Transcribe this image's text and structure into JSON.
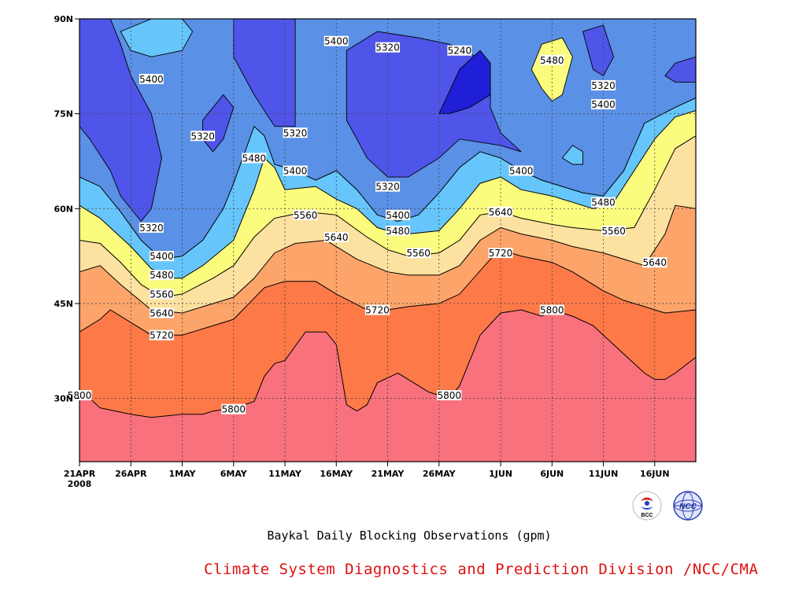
{
  "chart_data": {
    "type": "contour",
    "title": "Baykal Daily Blocking Observations (gpm)",
    "source": "Climate System Diagnostics and Prediction Division /NCC/CMA",
    "x_tick_labels": [
      "21APR",
      "26APR",
      "1MAY",
      "6MAY",
      "11MAY",
      "16MAY",
      "21MAY",
      "26MAY",
      "1JUN",
      "6JUN",
      "11JUN",
      "16JUN"
    ],
    "x_year_label": "2008",
    "y_tick_labels": [
      "30N",
      "45N",
      "60N",
      "75N",
      "90N"
    ],
    "x_range": [
      "21APR",
      "20JUN"
    ],
    "y_range": [
      20,
      90
    ],
    "grid": true,
    "levels": [
      5240,
      5320,
      5400,
      5480,
      5560,
      5640,
      5720,
      5800
    ],
    "colors": {
      "below_5240": "#1f1fd8",
      "5240_5320": "#4f55e8",
      "5320_5400": "#5a90e6",
      "5400_5480": "#66c6fb",
      "5480_5560": "#fbfb7d",
      "5560_5640": "#fde1a0",
      "5640_5720": "#fda46a",
      "5720_5800": "#fd7a48",
      "above_5800": "#f8717d"
    },
    "contour_lines": [
      {
        "level": 5800,
        "points": [
          [
            "21APR",
            30.5
          ],
          [
            "22APR",
            30
          ],
          [
            "23APR",
            28.5
          ],
          [
            "26APR",
            27.5
          ],
          [
            "28APR",
            27
          ],
          [
            "1MAY",
            27.5
          ],
          [
            "3MAY",
            27.5
          ],
          [
            "4MAY",
            28
          ],
          [
            "6MAY",
            28.5
          ],
          [
            "8MAY",
            29.5
          ],
          [
            "9MAY",
            33.5
          ],
          [
            "10MAY",
            35.5
          ],
          [
            "11MAY",
            36
          ],
          [
            "13MAY",
            40.5
          ],
          [
            "15MAY",
            40.5
          ],
          [
            "16MAY",
            38.5
          ],
          [
            "17MAY",
            29
          ],
          [
            "18MAY",
            28
          ],
          [
            "19MAY",
            29
          ],
          [
            "20MAY",
            32.5
          ],
          [
            "22MAY",
            34
          ],
          [
            "23MAY",
            33
          ],
          [
            "25MAY",
            31
          ],
          [
            "27MAY",
            30
          ],
          [
            "28MAY",
            32
          ],
          [
            "30MAY",
            40
          ],
          [
            "1JUN",
            43.5
          ],
          [
            "3JUN",
            44
          ],
          [
            "4JUN",
            43.5
          ],
          [
            "5JUN",
            43
          ],
          [
            "6JUN",
            44
          ],
          [
            "8JUN",
            43
          ],
          [
            "10JUN",
            41.5
          ],
          [
            "12JUN",
            38.5
          ],
          [
            "15JUN",
            34
          ],
          [
            "16JUN",
            33
          ],
          [
            "17JUN",
            33
          ],
          [
            "18JUN",
            34
          ],
          [
            "20JUN",
            36.5
          ]
        ]
      },
      {
        "level": 5720,
        "points": [
          [
            "21APR",
            40.5
          ],
          [
            "23APR",
            42.5
          ],
          [
            "24APR",
            44
          ],
          [
            "26APR",
            42
          ],
          [
            "28APR",
            40
          ],
          [
            "1MAY",
            40
          ],
          [
            "3MAY",
            41
          ],
          [
            "6MAY",
            42.5
          ],
          [
            "9MAY",
            47.5
          ],
          [
            "11MAY",
            48.5
          ],
          [
            "14MAY",
            48.5
          ],
          [
            "16MAY",
            46.5
          ],
          [
            "19MAY",
            44
          ],
          [
            "21MAY",
            44
          ],
          [
            "23MAY",
            44.5
          ],
          [
            "26MAY",
            45
          ],
          [
            "28MAY",
            46.5
          ],
          [
            "31MAY",
            52
          ],
          [
            "1JUN",
            53.5
          ],
          [
            "3JUN",
            52.5
          ],
          [
            "6JUN",
            51.5
          ],
          [
            "8JUN",
            50
          ],
          [
            "11JUN",
            47
          ],
          [
            "13JUN",
            45.5
          ],
          [
            "15JUN",
            44.5
          ],
          [
            "17JUN",
            43.5
          ],
          [
            "20JUN",
            44
          ]
        ]
      },
      {
        "level": 5640,
        "points": [
          [
            "21APR",
            50
          ],
          [
            "23APR",
            51
          ],
          [
            "25APR",
            48
          ],
          [
            "28APR",
            44
          ],
          [
            "1MAY",
            43.5
          ],
          [
            "6MAY",
            46
          ],
          [
            "8MAY",
            49
          ],
          [
            "10MAY",
            53
          ],
          [
            "12MAY",
            54.5
          ],
          [
            "15MAY",
            55
          ],
          [
            "18MAY",
            52
          ],
          [
            "21MAY",
            50
          ],
          [
            "23MAY",
            49.5
          ],
          [
            "26MAY",
            49.5
          ],
          [
            "28MAY",
            51
          ],
          [
            "30MAY",
            55
          ],
          [
            "1JUN",
            57
          ],
          [
            "3JUN",
            56
          ],
          [
            "6JUN",
            55
          ],
          [
            "8JUN",
            54
          ],
          [
            "11JUN",
            53
          ],
          [
            "13JUN",
            52
          ],
          [
            "15JUN",
            51
          ],
          [
            "17JUN",
            56
          ],
          [
            "18JUN",
            60.5
          ],
          [
            "20JUN",
            60
          ]
        ]
      },
      {
        "level": 5560,
        "points": [
          [
            "21APR",
            55
          ],
          [
            "23APR",
            54.5
          ],
          [
            "25APR",
            51.5
          ],
          [
            "27APR",
            48
          ],
          [
            "29APR",
            46
          ],
          [
            "1MAY",
            46.5
          ],
          [
            "4MAY",
            49
          ],
          [
            "6MAY",
            51
          ],
          [
            "8MAY",
            55.5
          ],
          [
            "10MAY",
            58.5
          ],
          [
            "13MAY",
            59.5
          ],
          [
            "16MAY",
            59
          ],
          [
            "19MAY",
            55.5
          ],
          [
            "21MAY",
            53.5
          ],
          [
            "23MAY",
            52.5
          ],
          [
            "26MAY",
            53
          ],
          [
            "28MAY",
            55
          ],
          [
            "30MAY",
            59
          ],
          [
            "1JUN",
            59.5
          ],
          [
            "3JUN",
            58.5
          ],
          [
            "6JUN",
            57.5
          ],
          [
            "8JUN",
            57
          ],
          [
            "11JUN",
            56.5
          ],
          [
            "14JUN",
            57
          ],
          [
            "16JUN",
            63
          ],
          [
            "18JUN",
            69.5
          ],
          [
            "20JUN",
            71.5
          ]
        ]
      },
      {
        "level": 5480,
        "points": [
          [
            "21APR",
            60.5
          ],
          [
            "23APR",
            58.5
          ],
          [
            "26APR",
            54
          ],
          [
            "28APR",
            50.5
          ],
          [
            "30APR",
            49
          ],
          [
            "1MAY",
            49
          ],
          [
            "3MAY",
            51
          ],
          [
            "6MAY",
            55
          ],
          [
            "8MAY",
            63
          ],
          [
            "9MAY",
            68
          ],
          [
            "10MAY",
            66.5
          ],
          [
            "11MAY",
            63
          ],
          [
            "14MAY",
            63.5
          ],
          [
            "16MAY",
            61.5
          ],
          [
            "18MAY",
            60
          ],
          [
            "20MAY",
            57
          ],
          [
            "21MAY",
            56.5
          ],
          [
            "23MAY",
            56
          ],
          [
            "26MAY",
            56.5
          ],
          [
            "28MAY",
            60
          ],
          [
            "30MAY",
            64
          ],
          [
            "1JUN",
            65
          ],
          [
            "3JUN",
            63
          ],
          [
            "6JUN",
            62
          ],
          [
            "8JUN",
            61
          ],
          [
            "10JUN",
            60
          ],
          [
            "12JUN",
            61
          ],
          [
            "14JUN",
            66
          ],
          [
            "16JUN",
            71
          ],
          [
            "18JUN",
            74.5
          ],
          [
            "20JUN",
            75.5
          ]
        ]
      },
      {
        "level": 5400,
        "points": [
          [
            "21APR",
            65
          ],
          [
            "23APR",
            63.5
          ],
          [
            "25APR",
            59.5
          ],
          [
            "27APR",
            55
          ],
          [
            "29APR",
            52
          ],
          [
            "1MAY",
            52.5
          ],
          [
            "3MAY",
            55
          ],
          [
            "5MAY",
            60
          ],
          [
            "6MAY",
            64
          ],
          [
            "8MAY",
            73
          ],
          [
            "9MAY",
            71.5
          ],
          [
            "10MAY",
            67
          ],
          [
            "12MAY",
            66
          ],
          [
            "14MAY",
            64.5
          ],
          [
            "16MAY",
            66
          ],
          [
            "18MAY",
            63
          ],
          [
            "20MAY",
            59
          ],
          [
            "22MAY",
            58
          ],
          [
            "24MAY",
            59
          ],
          [
            "26MAY",
            62.5
          ],
          [
            "28MAY",
            66.5
          ],
          [
            "30MAY",
            69
          ],
          [
            "1JUN",
            68
          ],
          [
            "3JUN",
            66
          ],
          [
            "5JUN",
            64.5
          ],
          [
            "7JUN",
            63.5
          ],
          [
            "9JUN",
            62.5
          ],
          [
            "11JUN",
            62
          ],
          [
            "13JUN",
            66
          ],
          [
            "15JUN",
            73.5
          ],
          [
            "18JUN",
            76
          ],
          [
            "20JUN",
            77.5
          ]
        ]
      }
    ],
    "labels": [
      {
        "text": "5800",
        "x": "21APR",
        "y": 30.5
      },
      {
        "text": "5800",
        "x": "6MAY",
        "y": 28.3
      },
      {
        "text": "5800",
        "x": "27MAY",
        "y": 30.5
      },
      {
        "text": "5800",
        "x": "6JUN",
        "y": 44
      },
      {
        "text": "5720",
        "x": "29APR",
        "y": 40
      },
      {
        "text": "5720",
        "x": "20MAY",
        "y": 44
      },
      {
        "text": "5720",
        "x": "1JUN",
        "y": 53
      },
      {
        "text": "5640",
        "x": "29APR",
        "y": 43.5
      },
      {
        "text": "5640",
        "x": "16MAY",
        "y": 55.5
      },
      {
        "text": "5640",
        "x": "1JUN",
        "y": 59.5
      },
      {
        "text": "5640",
        "x": "16JUN",
        "y": 51.5
      },
      {
        "text": "5560",
        "x": "29APR",
        "y": 46.5
      },
      {
        "text": "5560",
        "x": "13MAY",
        "y": 59
      },
      {
        "text": "5560",
        "x": "24MAY",
        "y": 53
      },
      {
        "text": "5560",
        "x": "12JUN",
        "y": 56.5
      },
      {
        "text": "5480",
        "x": "29APR",
        "y": 49.5
      },
      {
        "text": "5480",
        "x": "8MAY",
        "y": 68
      },
      {
        "text": "5480",
        "x": "22MAY",
        "y": 56.5
      },
      {
        "text": "5480",
        "x": "11JUN",
        "y": 61
      },
      {
        "text": "5480",
        "x": "6JUN",
        "y": 83.5
      },
      {
        "text": "5400",
        "x": "29APR",
        "y": 52.5
      },
      {
        "text": "5400",
        "x": "12MAY",
        "y": 66
      },
      {
        "text": "5400",
        "x": "22MAY",
        "y": 59
      },
      {
        "text": "5400",
        "x": "3JUN",
        "y": 66
      },
      {
        "text": "5400",
        "x": "11JUN",
        "y": 76.5
      },
      {
        "text": "5400",
        "x": "28APR",
        "y": 80.5
      },
      {
        "text": "5400",
        "x": "16MAY",
        "y": 86.5
      },
      {
        "text": "5320",
        "x": "28APR",
        "y": 57
      },
      {
        "text": "5320",
        "x": "3MAY",
        "y": 71.5
      },
      {
        "text": "5320",
        "x": "12MAY",
        "y": 72
      },
      {
        "text": "5320",
        "x": "21MAY",
        "y": 63.5
      },
      {
        "text": "5320",
        "x": "21MAY",
        "y": 85.5
      },
      {
        "text": "5320",
        "x": "11JUN",
        "y": 79.5
      },
      {
        "text": "5240",
        "x": "28MAY",
        "y": 85
      }
    ]
  }
}
